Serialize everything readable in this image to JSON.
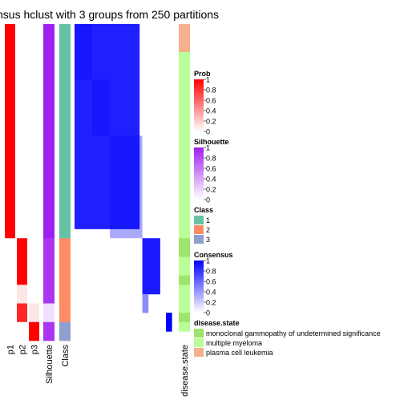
{
  "chart_data": {
    "type": "heatmap",
    "title": "nsus hclust with 3 groups from 250 partitions",
    "row_counts": [
      23,
      5,
      2,
      2,
      2
    ],
    "annotation_columns": [
      {
        "label": "p1",
        "values": [
          1,
          0,
          0,
          0,
          0
        ]
      },
      {
        "label": "p2",
        "values": [
          0,
          1,
          0.1,
          0.85,
          0
        ]
      },
      {
        "label": "p3",
        "values": [
          0,
          0,
          0,
          0.1,
          1
        ]
      },
      {
        "label": "Silhouette",
        "values": [
          1,
          0.9,
          0.9,
          0.15,
          0.9
        ]
      },
      {
        "label": "Class",
        "values": [
          1,
          2,
          2,
          2,
          3
        ]
      }
    ],
    "consensus_blocks": [
      {
        "rows": [
          0,
          22
        ],
        "cols": [
          0,
          22
        ],
        "value": 0.88
      },
      {
        "rows": [
          23,
          29
        ],
        "cols": [
          23,
          29
        ],
        "value": 0.9
      },
      {
        "rows": [
          29,
          31
        ],
        "cols": [
          23,
          25
        ],
        "value": 0.45
      },
      {
        "rows": [
          31,
          33
        ],
        "cols": [
          31,
          33
        ],
        "value": 1.0
      }
    ],
    "disease_state_column": {
      "label": "disease.state",
      "values": [
        "plasma cell leukemia",
        "plasma cell leukemia",
        "plasma cell leukemia",
        "multiple myeloma",
        "multiple myeloma",
        "multiple myeloma",
        "multiple myeloma",
        "multiple myeloma",
        "multiple myeloma",
        "multiple myeloma",
        "multiple myeloma",
        "multiple myeloma",
        "multiple myeloma",
        "multiple myeloma",
        "multiple myeloma",
        "multiple myeloma",
        "multiple myeloma",
        "multiple myeloma",
        "multiple myeloma",
        "multiple myeloma",
        "multiple myeloma",
        "multiple myeloma",
        "multiple myeloma",
        "monoclonal gammopathy of undetermined significance",
        "monoclonal gammopathy of undetermined significance",
        "multiple myeloma",
        "multiple myeloma",
        "monoclonal gammopathy of undetermined significance",
        "multiple myeloma",
        "multiple myeloma",
        "multiple myeloma",
        "monoclonal gammopathy of undetermined significance",
        "multiple myeloma"
      ]
    },
    "legends": [
      {
        "title": "Prob",
        "type": "continuous",
        "colors": [
          "#ffffff",
          "#ff0000"
        ],
        "ticks": [
          "1",
          "0.8",
          "0.6",
          "0.4",
          "0.2",
          "0"
        ]
      },
      {
        "title": "Silhouette",
        "type": "continuous",
        "colors": [
          "#ffffff",
          "#a020f0"
        ],
        "ticks": [
          "1",
          "0.8",
          "0.6",
          "0.4",
          "0.2",
          "0"
        ]
      },
      {
        "title": "Class",
        "type": "discrete",
        "items": [
          {
            "label": "1",
            "color": "#66c2a5"
          },
          {
            "label": "2",
            "color": "#fc8d62"
          },
          {
            "label": "3",
            "color": "#8da0cb"
          }
        ]
      },
      {
        "title": "Consensus",
        "type": "continuous",
        "colors": [
          "#ffffff",
          "#0000ff"
        ],
        "ticks": [
          "1",
          "0.8",
          "0.6",
          "0.4",
          "0.2",
          "0"
        ]
      },
      {
        "title": "disease.state",
        "type": "discrete",
        "items": [
          {
            "label": "monoclonal gammopathy of undetermined significance",
            "color": "#9ee36b"
          },
          {
            "label": "multiple myeloma",
            "color": "#b8ff9a"
          },
          {
            "label": "plasma cell leukemia",
            "color": "#f5b08c"
          }
        ]
      }
    ]
  }
}
